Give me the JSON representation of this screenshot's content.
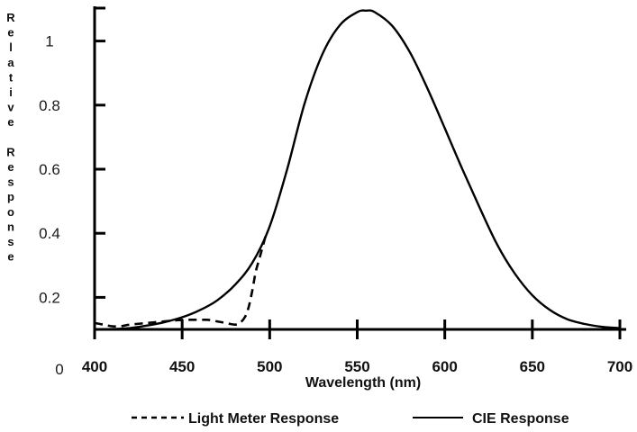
{
  "chart_data": {
    "type": "line",
    "xlabel": "Wavelength (nm)",
    "ylabel": "Relative Response",
    "xlim": [
      400,
      700
    ],
    "ylim": [
      0,
      1.1
    ],
    "x_ticks": [
      400,
      450,
      500,
      550,
      600,
      650,
      700
    ],
    "x_tick_labels": [
      "400",
      "450",
      "500",
      "550",
      "600",
      "650",
      "700"
    ],
    "y_ticks": [
      0.2,
      0.4,
      0.6,
      0.8,
      1.0
    ],
    "y_tick_labels": [
      "0.2",
      "0.4",
      "0.6",
      "0.8",
      "1"
    ],
    "origin_label": "0",
    "legend_placement": "bottom",
    "grid": false,
    "series": [
      {
        "name": "Light Meter Response",
        "style": "dashed",
        "color": "#000000",
        "x": [
          400,
          405,
          410,
          415,
          420,
          430,
          440,
          450,
          460,
          465,
          470,
          475,
          480,
          483,
          486,
          488,
          490,
          492,
          494,
          496,
          498
        ],
        "y": [
          0.02,
          0.015,
          0.01,
          0.01,
          0.015,
          0.02,
          0.025,
          0.03,
          0.03,
          0.03,
          0.025,
          0.02,
          0.015,
          0.02,
          0.04,
          0.07,
          0.12,
          0.18,
          0.22,
          0.26,
          0.3
        ]
      },
      {
        "name": "CIE Response",
        "style": "solid",
        "color": "#000000",
        "x": [
          400,
          410,
          420,
          430,
          440,
          450,
          460,
          470,
          480,
          490,
          500,
          510,
          520,
          530,
          540,
          550,
          555,
          560,
          570,
          580,
          590,
          600,
          610,
          620,
          630,
          640,
          650,
          660,
          670,
          680,
          690,
          700
        ],
        "y": [
          0.0,
          0.001,
          0.004,
          0.012,
          0.023,
          0.038,
          0.06,
          0.091,
          0.139,
          0.208,
          0.323,
          0.503,
          0.71,
          0.862,
          0.954,
          0.995,
          1.0,
          0.995,
          0.952,
          0.87,
          0.757,
          0.631,
          0.503,
          0.381,
          0.265,
          0.175,
          0.107,
          0.061,
          0.032,
          0.017,
          0.008,
          0.004
        ]
      }
    ]
  }
}
